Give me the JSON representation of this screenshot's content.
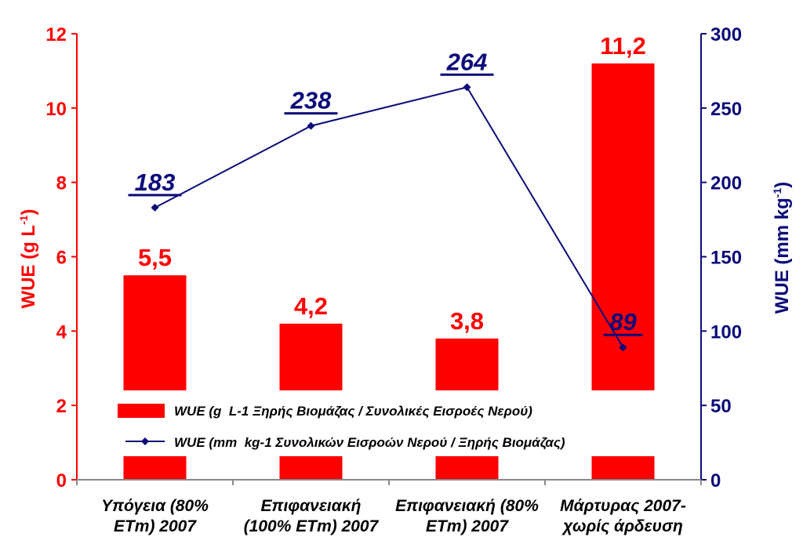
{
  "colors": {
    "bar": "#ff0000",
    "line": "#0b0b7a",
    "background": "#ffffff",
    "legend_text": "#000000"
  },
  "chart_data": {
    "type": "bar",
    "categories": [
      "Υπόγεια (80%\nETm) 2007",
      "Επιφανειακή\n(100% ETm) 2007",
      "Επιφανειακή (80%\nETm) 2007",
      "Μάρτυρας 2007-\nχωρίς άρδευση"
    ],
    "series": [
      {
        "name": "WUE (g  L-1 Ξηρής Βιομάζας / Συνολικές Εισροές Νερού)",
        "type": "bar",
        "axis": "left",
        "values": [
          5.5,
          4.2,
          3.8,
          11.2
        ],
        "data_labels": [
          "5,5",
          "4,2",
          "3,8",
          "11,2"
        ]
      },
      {
        "name": "WUE (mm  kg-1 Συνολικών Εισροών Νερού / Ξηρής Βιομάζας)",
        "type": "line",
        "axis": "right",
        "values": [
          183,
          238,
          264,
          89
        ],
        "data_labels": [
          "183",
          "238",
          "264",
          "89"
        ]
      }
    ],
    "ylabel_left": "WUE (g L-1)",
    "ylabel_right": "WUE (mm kg-1)",
    "ylim_left": [
      0,
      12
    ],
    "ylim_right": [
      0,
      300
    ],
    "yticks_left": [
      "0",
      "2",
      "4",
      "6",
      "8",
      "10",
      "12"
    ],
    "yticks_right": [
      "0",
      "50",
      "100",
      "150",
      "200",
      "250",
      "300"
    ],
    "grid": false,
    "legend_position": "bottom-center-inside"
  }
}
